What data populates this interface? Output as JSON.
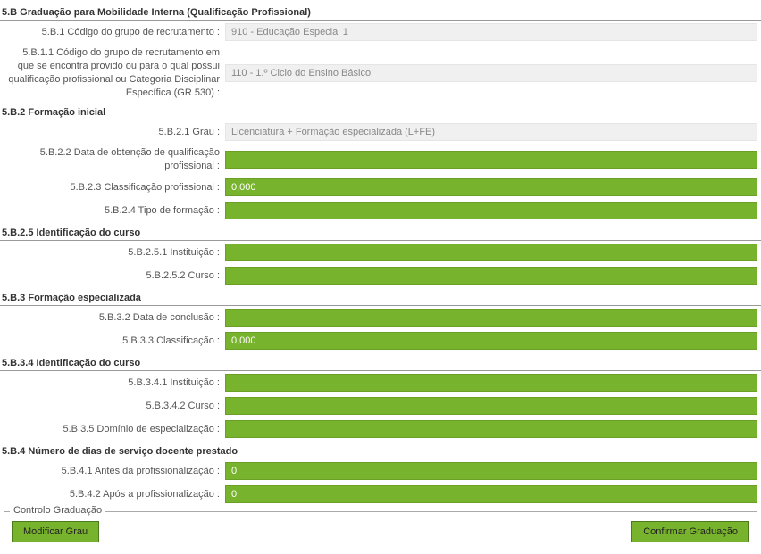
{
  "colors": {
    "green_fill": "#77b32c",
    "green_border": "#6aa024",
    "gray_fill": "#f0f0f0",
    "gray_text": "#888888"
  },
  "headers": {
    "main": "5.B Graduação para Mobilidade Interna (Qualificação Profissional)",
    "h5b2": "5.B.2 Formação inicial",
    "h5b25": "5.B.2.5 Identificação do curso",
    "h5b3": "5.B.3 Formação especializada",
    "h5b34": "5.B.3.4 Identificação do curso",
    "h5b4": "5.B.4 Número de dias de serviço docente prestado"
  },
  "labels": {
    "l5b1": "5.B.1 Código do grupo de recrutamento :",
    "l5b11": "5.B.1.1 Código do grupo de recrutamento em que se encontra provido ou para o qual possui qualificação profissional ou Categoria Disciplinar Específica (GR 530) :",
    "l5b21": "5.B.2.1 Grau :",
    "l5b22": "5.B.2.2 Data de obtenção de qualificação profissional :",
    "l5b23": "5.B.2.3 Classificação profissional :",
    "l5b24": "5.B.2.4 Tipo de formação :",
    "l5b251": "5.B.2.5.1 Instituição :",
    "l5b252": "5.B.2.5.2 Curso :",
    "l5b32": "5.B.3.2 Data de conclusão :",
    "l5b33": "5.B.3.3 Classificação :",
    "l5b341": "5.B.3.4.1 Instituição :",
    "l5b342": "5.B.3.4.2 Curso :",
    "l5b35": "5.B.3.5 Domínio de especialização :",
    "l5b41": "5.B.4.1 Antes da profissionalização :",
    "l5b42": "5.B.4.2 Após a profissionalização :"
  },
  "values": {
    "v5b1": "910 - Educação Especial 1",
    "v5b11": "110 - 1.º Ciclo do Ensino Básico",
    "v5b21": "Licenciatura + Formação especializada (L+FE)",
    "v5b22": "",
    "v5b23": "0,000",
    "v5b24": "",
    "v5b251": "",
    "v5b252": "",
    "v5b32": "",
    "v5b33": "0,000",
    "v5b341": "",
    "v5b342": "",
    "v5b35": "",
    "v5b41": "0",
    "v5b42": "0"
  },
  "controlo": {
    "legend": "Controlo Graduação",
    "btn_modificar": "Modificar Grau",
    "btn_confirmar": "Confirmar Graduação"
  }
}
